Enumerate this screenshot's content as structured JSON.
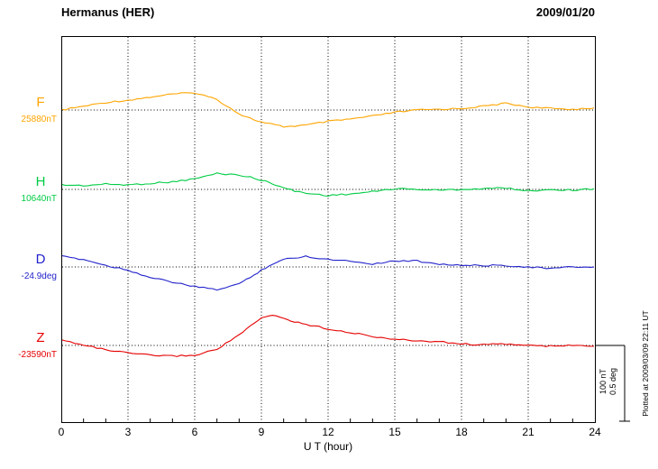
{
  "header": {
    "title": "Hermanus (HER)",
    "date": "2009/01/20"
  },
  "axis": {
    "x_label": "U T (hour)",
    "x_ticks": [
      0,
      3,
      6,
      9,
      12,
      15,
      18,
      21,
      24
    ],
    "x_range": [
      0,
      24
    ]
  },
  "components": [
    {
      "name": "F",
      "baseline_label": "25880nT",
      "baseline_value": 25880,
      "unit": "nT",
      "color": "#FFA500"
    },
    {
      "name": "H",
      "baseline_label": "10640nT",
      "baseline_value": 10640,
      "unit": "nT",
      "color": "#00CC44"
    },
    {
      "name": "D",
      "baseline_label": "-24.9deg",
      "baseline_value": -24.9,
      "unit": "deg",
      "color": "#2222CC"
    },
    {
      "name": "Z",
      "baseline_label": "-23590nT",
      "baseline_value": -23590,
      "unit": "nT",
      "color": "#E60000"
    }
  ],
  "scale_bar": {
    "label_nt": "100 nT",
    "label_deg": "0.5 deg",
    "nT_per_div": 100,
    "deg_per_div": 0.5
  },
  "footer": {
    "plotted_at": "Plotted at 2009/03/09 22:11 UT"
  },
  "chart_data": {
    "type": "line",
    "title": "Hermanus (HER) magnetogram 2009/01/20",
    "xlabel": "U T (hour)",
    "x_range": [
      0,
      24
    ],
    "grid": "dotted vertical lines every 3 hours, dotted horizontal baseline per component",
    "x": [
      0,
      1,
      2,
      3,
      4,
      5,
      6,
      7,
      8,
      8.5,
      9,
      9.5,
      10,
      10.5,
      11,
      12,
      13,
      14,
      15,
      16,
      17,
      18,
      19,
      20,
      21,
      22,
      23,
      24
    ],
    "series": [
      {
        "name": "F",
        "unit": "nT",
        "baseline": 25880,
        "color": "#FFA500",
        "offsets": [
          0,
          5,
          10,
          13,
          17,
          21,
          23,
          14,
          -5,
          -11,
          -16,
          -19,
          -22,
          -21,
          -20,
          -15,
          -12,
          -8,
          -3,
          0,
          1,
          2,
          5,
          9,
          4,
          2,
          1,
          3
        ]
      },
      {
        "name": "H",
        "unit": "nT",
        "baseline": 10640,
        "color": "#00CC44",
        "offsets": [
          6,
          5,
          7,
          6,
          8,
          10,
          14,
          21,
          19,
          16,
          12,
          8,
          2,
          -2,
          -5,
          -8,
          -6,
          -3,
          1,
          0,
          -1,
          0,
          1,
          2,
          -2,
          0,
          -1,
          1
        ]
      },
      {
        "name": "D",
        "unit": "deg",
        "baseline": -24.9,
        "color": "#2222CC",
        "offsets": [
          0.07,
          0.05,
          0.01,
          -0.02,
          -0.07,
          -0.1,
          -0.13,
          -0.15,
          -0.11,
          -0.07,
          -0.02,
          0.02,
          0.05,
          0.06,
          0.07,
          0.05,
          0.04,
          0.02,
          0.04,
          0.04,
          0.02,
          0.01,
          0.01,
          0.01,
          0.0,
          -0.01,
          0.0,
          0.0
        ]
      },
      {
        "name": "Z",
        "unit": "nT",
        "baseline": -23590,
        "color": "#E60000",
        "offsets": [
          7,
          1,
          -6,
          -10,
          -13,
          -14,
          -13,
          -5,
          14,
          25,
          36,
          40,
          36,
          31,
          28,
          22,
          17,
          12,
          8,
          6,
          5,
          2,
          1,
          2,
          0,
          -1,
          0,
          -1
        ]
      }
    ],
    "scale": {
      "nT_per_div": 100,
      "deg_per_div": 0.5
    }
  }
}
